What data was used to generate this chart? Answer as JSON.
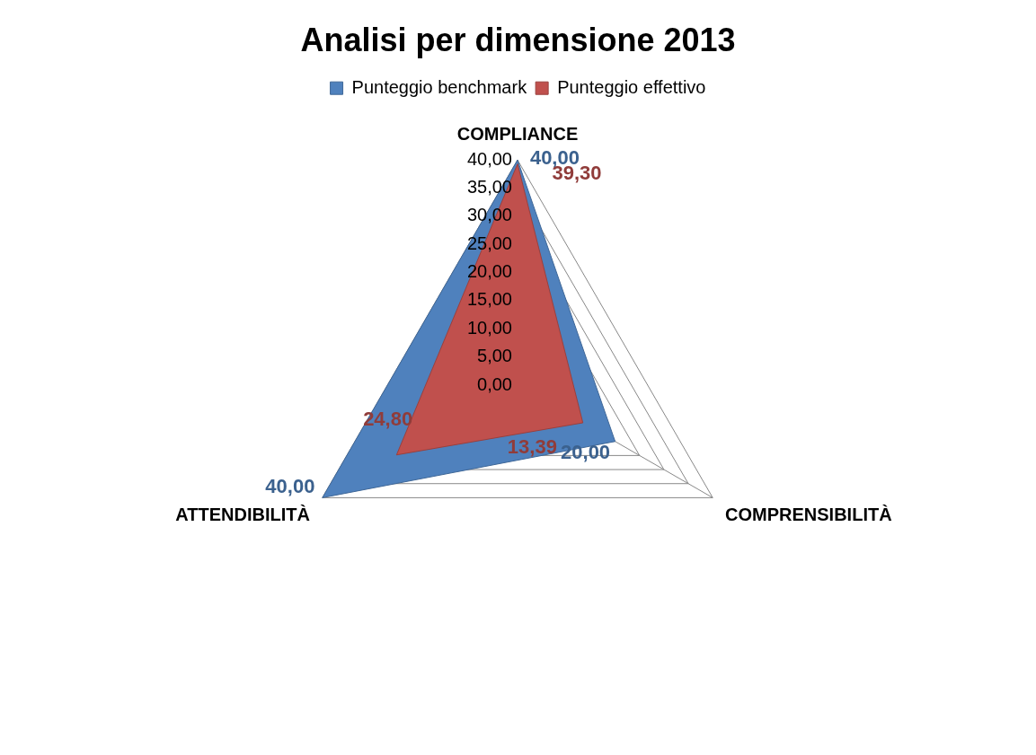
{
  "chart_data": {
    "type": "radar",
    "title": "Analisi per dimensione 2013",
    "categories": [
      "COMPLIANCE",
      "COMPRENSIBILITÀ",
      "ATTENDIBILITÀ"
    ],
    "series": [
      {
        "name": "Punteggio benchmark",
        "color": "#4f81bd",
        "values": [
          40,
          20,
          40
        ],
        "value_labels": [
          "40,00",
          "20,00",
          "40,00"
        ]
      },
      {
        "name": "Punteggio effettivo",
        "color": "#c0504d",
        "values": [
          39.3,
          13.39,
          24.8
        ],
        "value_labels": [
          "39,30",
          "13,39",
          "24,80"
        ]
      }
    ],
    "ylim": [
      0,
      40
    ],
    "yticks": [
      {
        "value": 0,
        "label": "0,00"
      },
      {
        "value": 5,
        "label": "5,00"
      },
      {
        "value": 10,
        "label": "10,00"
      },
      {
        "value": 15,
        "label": "15,00"
      },
      {
        "value": 20,
        "label": "20,00"
      },
      {
        "value": 25,
        "label": "25,00"
      },
      {
        "value": 30,
        "label": "30,00"
      },
      {
        "value": 35,
        "label": "35,00"
      },
      {
        "value": 40,
        "label": "40,00"
      }
    ],
    "grid": true,
    "legend": "top"
  }
}
